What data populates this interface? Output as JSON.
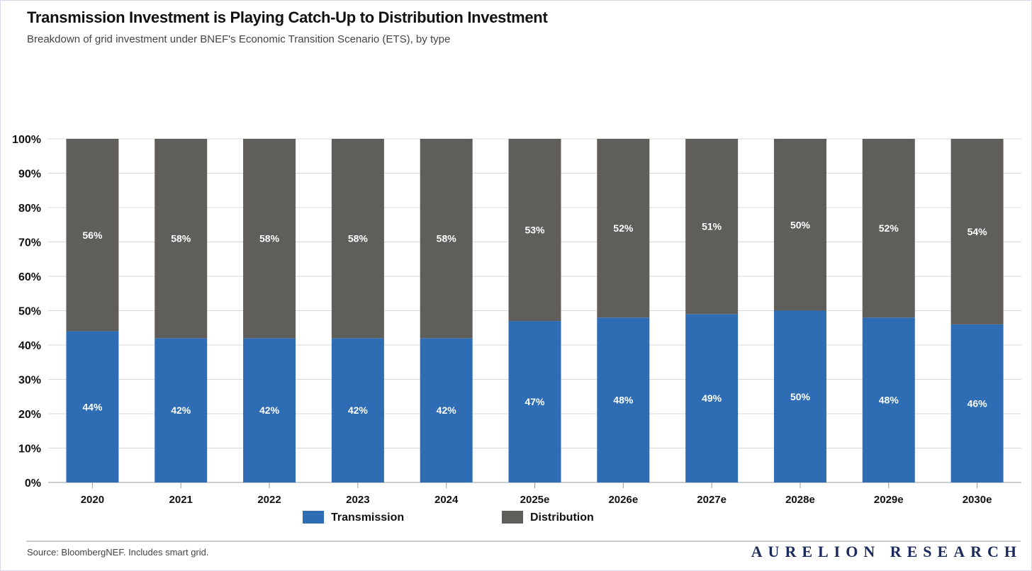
{
  "chart_data": {
    "type": "bar",
    "stacked": true,
    "title": "Transmission Investment is Playing Catch-Up to Distribution Investment",
    "subtitle": "Breakdown of grid investment under BNEF's Economic Transition Scenario (ETS), by type",
    "categories": [
      "2020",
      "2021",
      "2022",
      "2023",
      "2024",
      "2025e",
      "2026e",
      "2027e",
      "2028e",
      "2029e",
      "2030e"
    ],
    "series": [
      {
        "name": "Transmission",
        "color": "#2e6db4",
        "values": [
          44,
          42,
          42,
          42,
          42,
          47,
          48,
          49,
          50,
          48,
          46
        ]
      },
      {
        "name": "Distribution",
        "color": "#5f5e5a",
        "values": [
          56,
          58,
          58,
          58,
          58,
          53,
          52,
          51,
          50,
          52,
          54
        ]
      }
    ],
    "ylim": [
      0,
      100
    ],
    "yticks": [
      "0%",
      "10%",
      "20%",
      "30%",
      "40%",
      "50%",
      "60%",
      "70%",
      "80%",
      "90%",
      "100%"
    ],
    "xlabel": "",
    "ylabel": "",
    "grid": true,
    "legend": "bottom-center"
  },
  "footer": {
    "source": "Source: BloombergNEF. Includes smart grid.",
    "brand": "AURELION RESEARCH"
  }
}
